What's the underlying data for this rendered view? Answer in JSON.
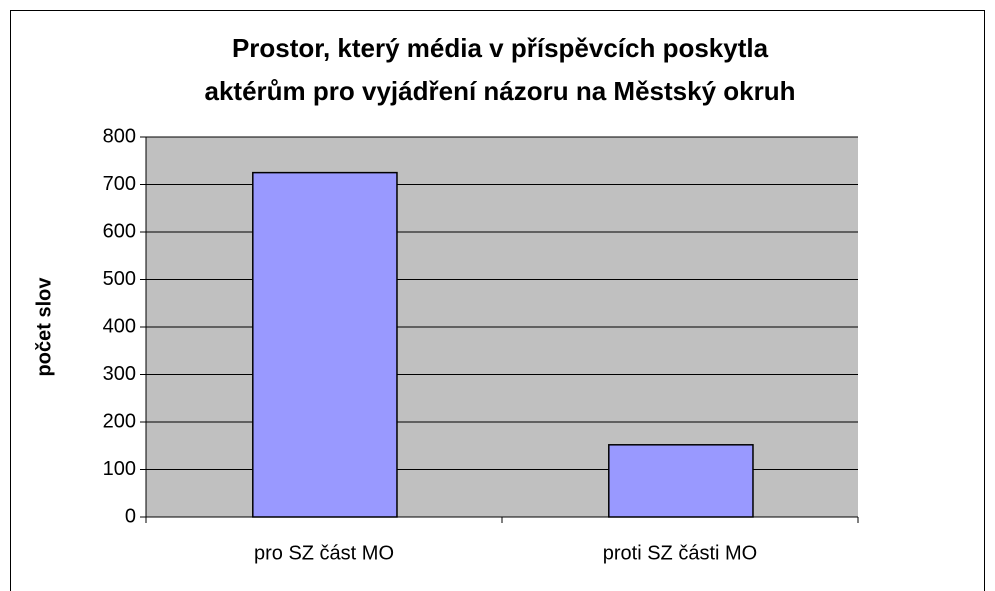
{
  "chart_data": {
    "type": "bar",
    "title": [
      "Prostor, který média v příspěvcích poskytla",
      "aktérům pro vyjádření názoru na Městský okruh"
    ],
    "y_label": "počet slov",
    "categories": [
      "pro SZ část MO",
      "proti SZ části MO"
    ],
    "values": [
      725,
      152
    ],
    "color": "#9999ff",
    "ylim": [
      0,
      800
    ],
    "yticks": [
      0,
      100,
      200,
      300,
      400,
      500,
      600,
      700,
      800
    ],
    "grid": true
  }
}
